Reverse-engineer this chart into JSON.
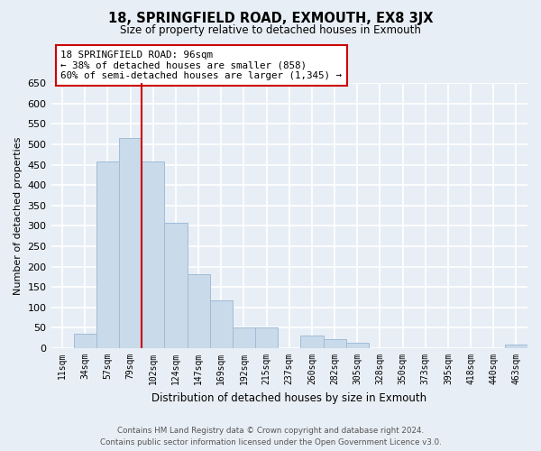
{
  "title": "18, SPRINGFIELD ROAD, EXMOUTH, EX8 3JX",
  "subtitle": "Size of property relative to detached houses in Exmouth",
  "xlabel": "Distribution of detached houses by size in Exmouth",
  "ylabel": "Number of detached properties",
  "bar_labels": [
    "11sqm",
    "34sqm",
    "57sqm",
    "79sqm",
    "102sqm",
    "124sqm",
    "147sqm",
    "169sqm",
    "192sqm",
    "215sqm",
    "237sqm",
    "260sqm",
    "282sqm",
    "305sqm",
    "328sqm",
    "350sqm",
    "373sqm",
    "395sqm",
    "418sqm",
    "440sqm",
    "463sqm"
  ],
  "bar_values": [
    0,
    35,
    457,
    515,
    457,
    307,
    182,
    118,
    50,
    50,
    0,
    30,
    22,
    13,
    0,
    0,
    0,
    0,
    0,
    0,
    8
  ],
  "bar_color": "#c9daea",
  "bar_edge_color": "#a0bcd8",
  "vline_index": 3,
  "vline_color": "#cc0000",
  "ylim": [
    0,
    650
  ],
  "yticks": [
    0,
    50,
    100,
    150,
    200,
    250,
    300,
    350,
    400,
    450,
    500,
    550,
    600,
    650
  ],
  "annotation_line1": "18 SPRINGFIELD ROAD: 96sqm",
  "annotation_line2": "← 38% of detached houses are smaller (858)",
  "annotation_line3": "60% of semi-detached houses are larger (1,345) →",
  "annotation_box_color": "#ffffff",
  "annotation_box_edgecolor": "#cc0000",
  "footer_line1": "Contains HM Land Registry data © Crown copyright and database right 2024.",
  "footer_line2": "Contains public sector information licensed under the Open Government Licence v3.0.",
  "bg_color": "#e8eef5",
  "plot_bg_color": "#e8eef5",
  "grid_color": "#ffffff"
}
